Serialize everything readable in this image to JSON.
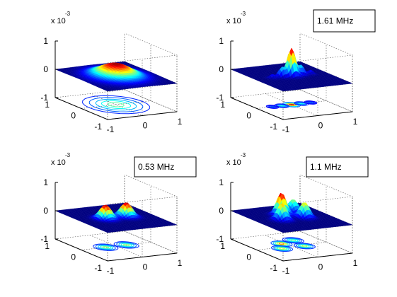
{
  "chart_data": [
    {
      "type": "surface",
      "title": "",
      "annotation": "",
      "axis_scale": "x 10",
      "axis_scale_exp": "-3",
      "zlim": [
        -1,
        1
      ],
      "z_ticks": [
        "1",
        "0",
        "-1"
      ],
      "x_ticks": [
        "1",
        "0",
        "-1"
      ],
      "y_ticks": [
        "-1",
        "0",
        "1"
      ],
      "peaks": [
        {
          "x": 0.0,
          "y": 0.0,
          "z": 0.45,
          "width": 0.38
        }
      ]
    },
    {
      "type": "surface",
      "title": "",
      "annotation": "1.61 MHz",
      "axis_scale": "x 10",
      "axis_scale_exp": "-3",
      "zlim": [
        -1,
        1
      ],
      "z_ticks": [
        "1",
        "0",
        "-1"
      ],
      "x_ticks": [
        "1",
        "0",
        "-1"
      ],
      "y_ticks": [
        "-1",
        "0",
        "1"
      ],
      "peaks": [
        {
          "x": 0.0,
          "y": 0.0,
          "z": 1.0,
          "width": 0.1
        },
        {
          "x": 0.0,
          "y": -0.28,
          "z": 0.35,
          "width": 0.08
        },
        {
          "x": 0.0,
          "y": 0.28,
          "z": 0.35,
          "width": 0.08
        },
        {
          "x": 0.0,
          "y": -0.55,
          "z": 0.15,
          "width": 0.07
        },
        {
          "x": 0.0,
          "y": 0.55,
          "z": 0.15,
          "width": 0.07
        }
      ]
    },
    {
      "type": "surface",
      "title": "",
      "annotation": "0.53  MHz",
      "axis_scale": "x 10",
      "axis_scale_exp": "-3",
      "zlim": [
        -1,
        1
      ],
      "z_ticks": [
        "1",
        "0",
        "-1"
      ],
      "x_ticks": [
        "1",
        "0",
        "-1"
      ],
      "y_ticks": [
        "-1",
        "0",
        "1"
      ],
      "peaks": [
        {
          "x": 0.0,
          "y": -0.3,
          "z": 0.5,
          "width": 0.14
        },
        {
          "x": 0.0,
          "y": 0.3,
          "z": 0.5,
          "width": 0.14
        }
      ]
    },
    {
      "type": "surface",
      "title": "",
      "annotation": "1.1  MHz",
      "axis_scale": "x 10",
      "axis_scale_exp": "-3",
      "zlim": [
        -1,
        1
      ],
      "z_ticks": [
        "1",
        "0",
        "-1"
      ],
      "x_ticks": [
        "1",
        "0",
        "-1"
      ],
      "y_ticks": [
        "-1",
        "0",
        "1"
      ],
      "peaks": [
        {
          "x": 0.25,
          "y": -0.1,
          "z": 0.8,
          "width": 0.12
        },
        {
          "x": -0.1,
          "y": -0.35,
          "z": 0.6,
          "width": 0.12
        },
        {
          "x": -0.1,
          "y": 0.3,
          "z": 0.55,
          "width": 0.12
        },
        {
          "x": 0.4,
          "y": 0.35,
          "z": 0.45,
          "width": 0.12
        }
      ]
    }
  ]
}
